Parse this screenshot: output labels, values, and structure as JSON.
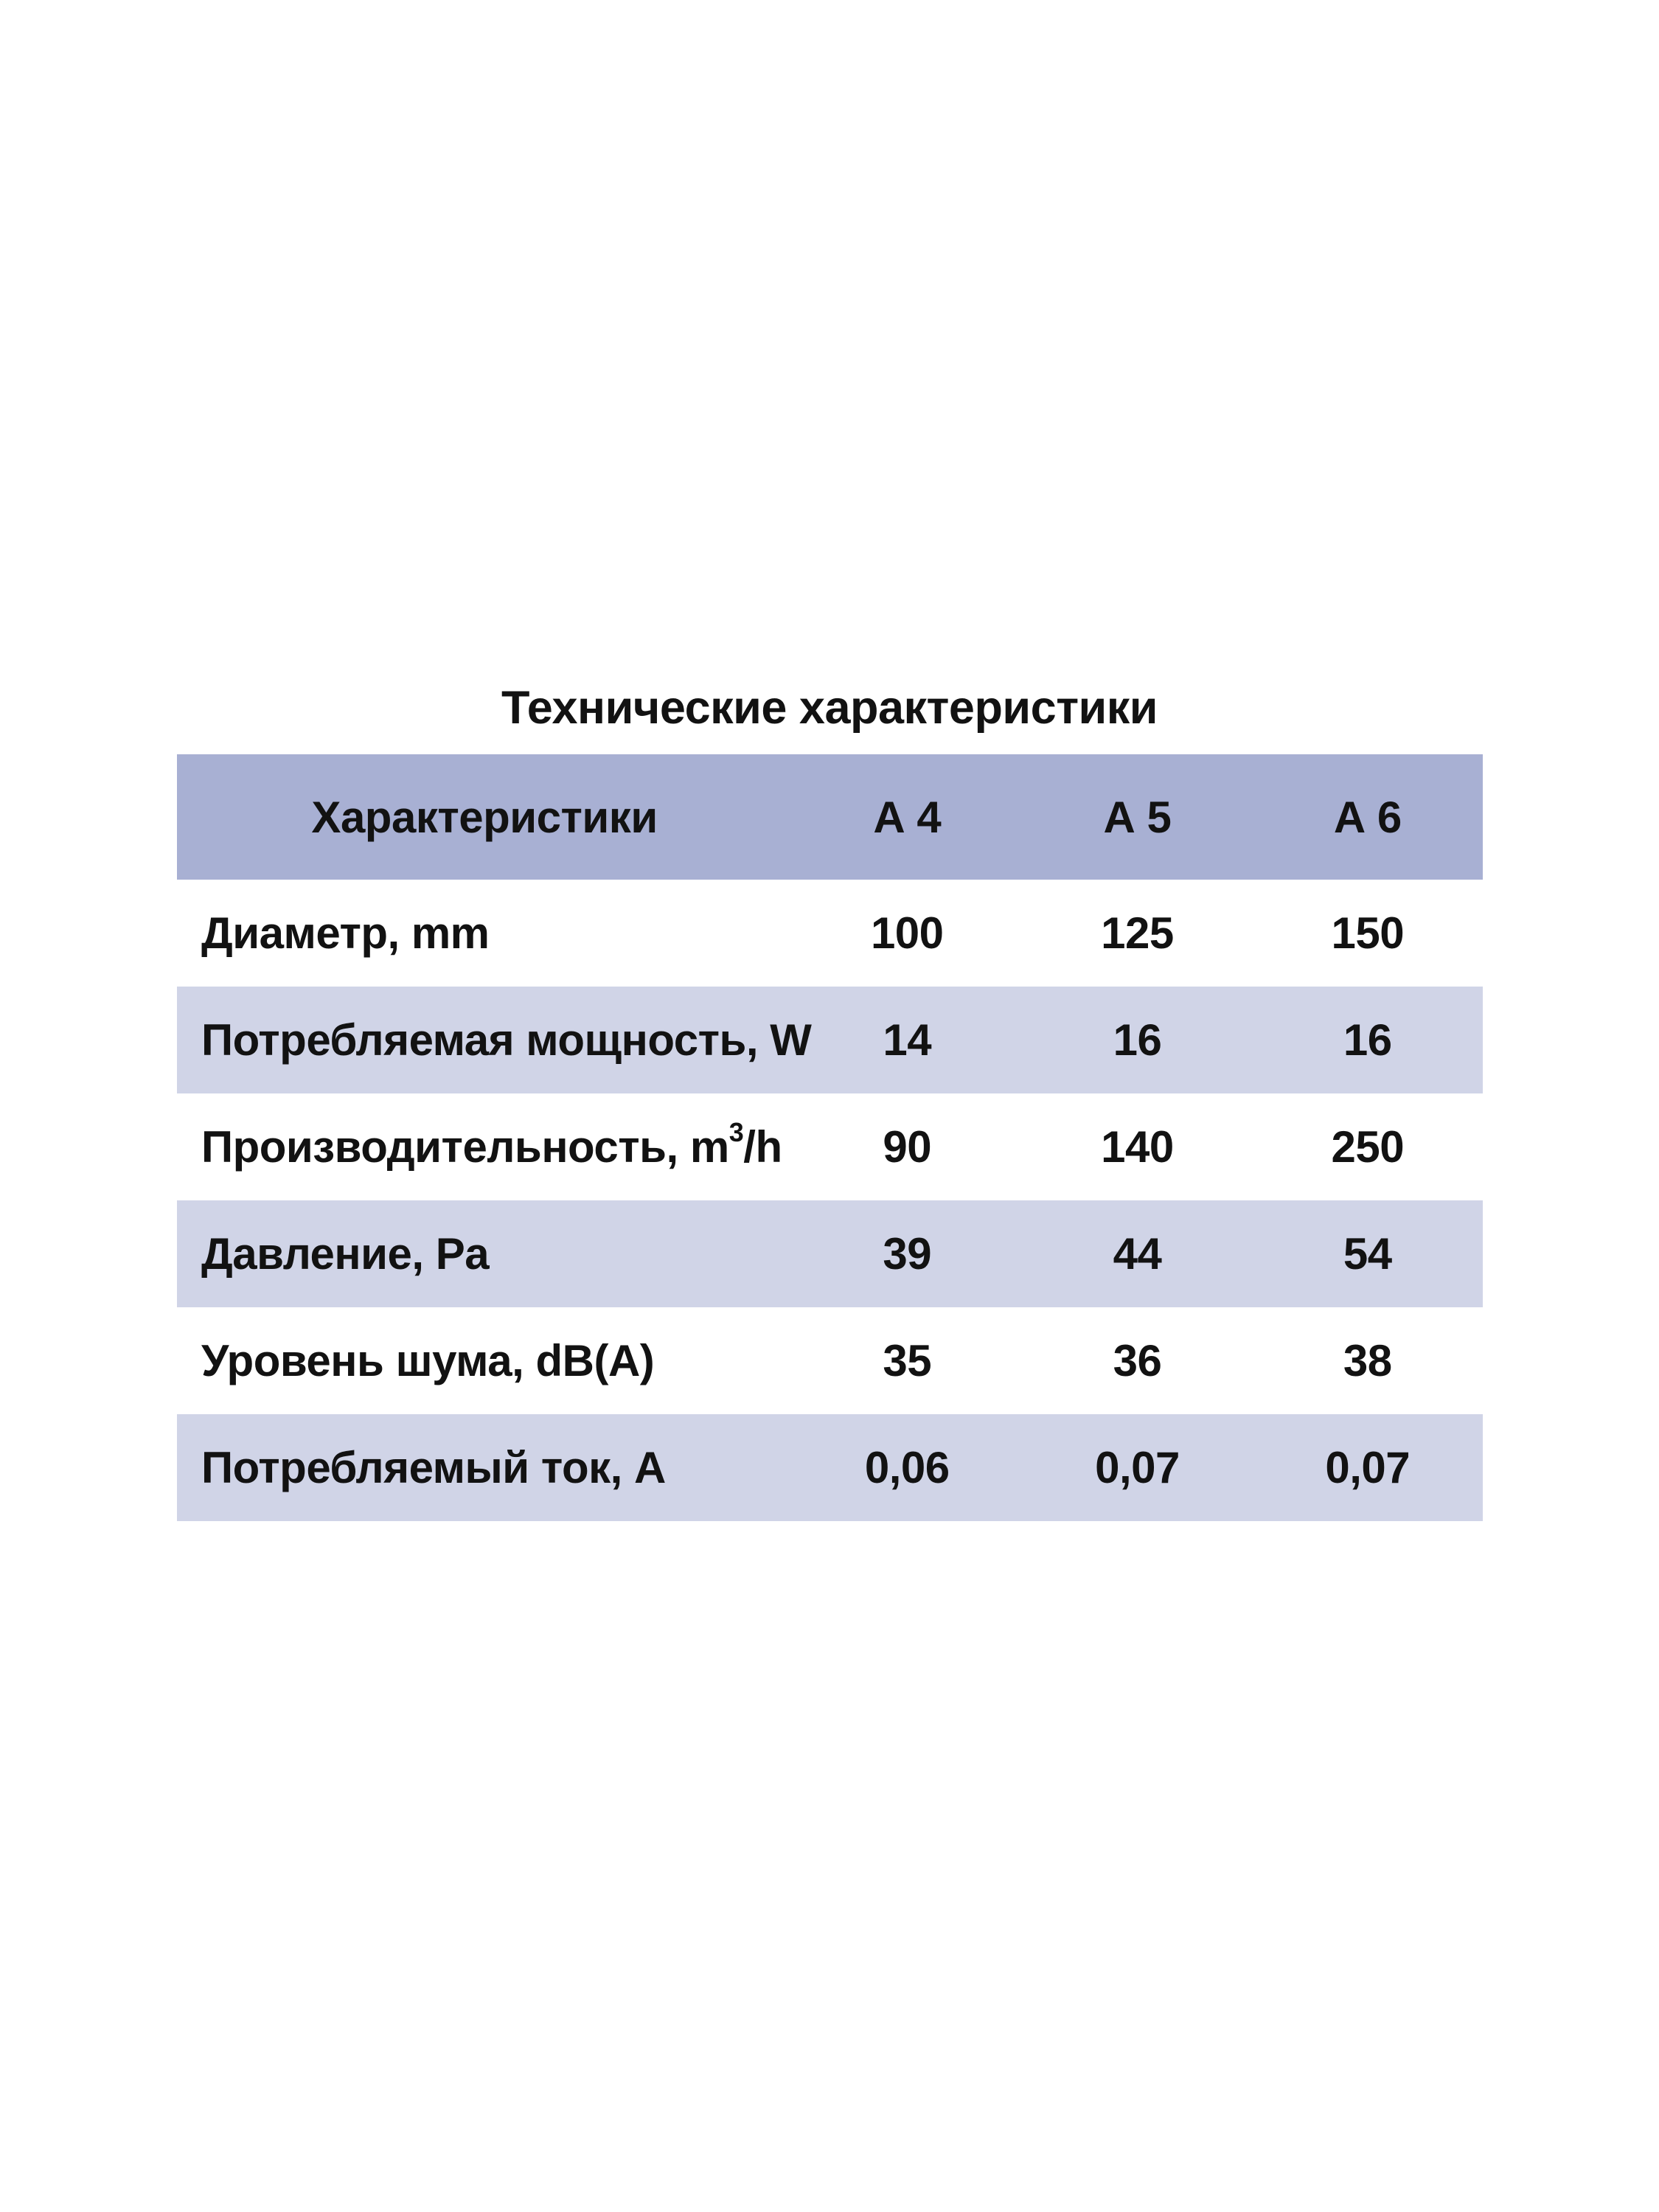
{
  "title": "Технические характеристики",
  "colors": {
    "background": "#ffffff",
    "header_bg": "#a8b0d3",
    "stripe_bg": "#d0d4e7",
    "text": "#121212"
  },
  "table": {
    "header": {
      "characteristics": "Характеристики",
      "columns": [
        "А 4",
        "А 5",
        "А 6"
      ]
    },
    "rows": [
      {
        "label": "Диаметр, mm",
        "values": [
          "100",
          "125",
          "150"
        ]
      },
      {
        "label": "Потребляемая мощность, W",
        "values": [
          "14",
          "16",
          "16"
        ]
      },
      {
        "label": "Производительность, m³/h",
        "label_parts": {
          "pre": "Производительность, m",
          "sup": "3",
          "post": "/h"
        },
        "values": [
          "90",
          "140",
          "250"
        ]
      },
      {
        "label": "Давление, Pa",
        "values": [
          "39",
          "44",
          "54"
        ]
      },
      {
        "label": "Уровень шума, dB(A)",
        "values": [
          "35",
          "36",
          "38"
        ]
      },
      {
        "label": "Потребляемый ток, А",
        "values": [
          "0,06",
          "0,07",
          "0,07"
        ]
      }
    ]
  }
}
